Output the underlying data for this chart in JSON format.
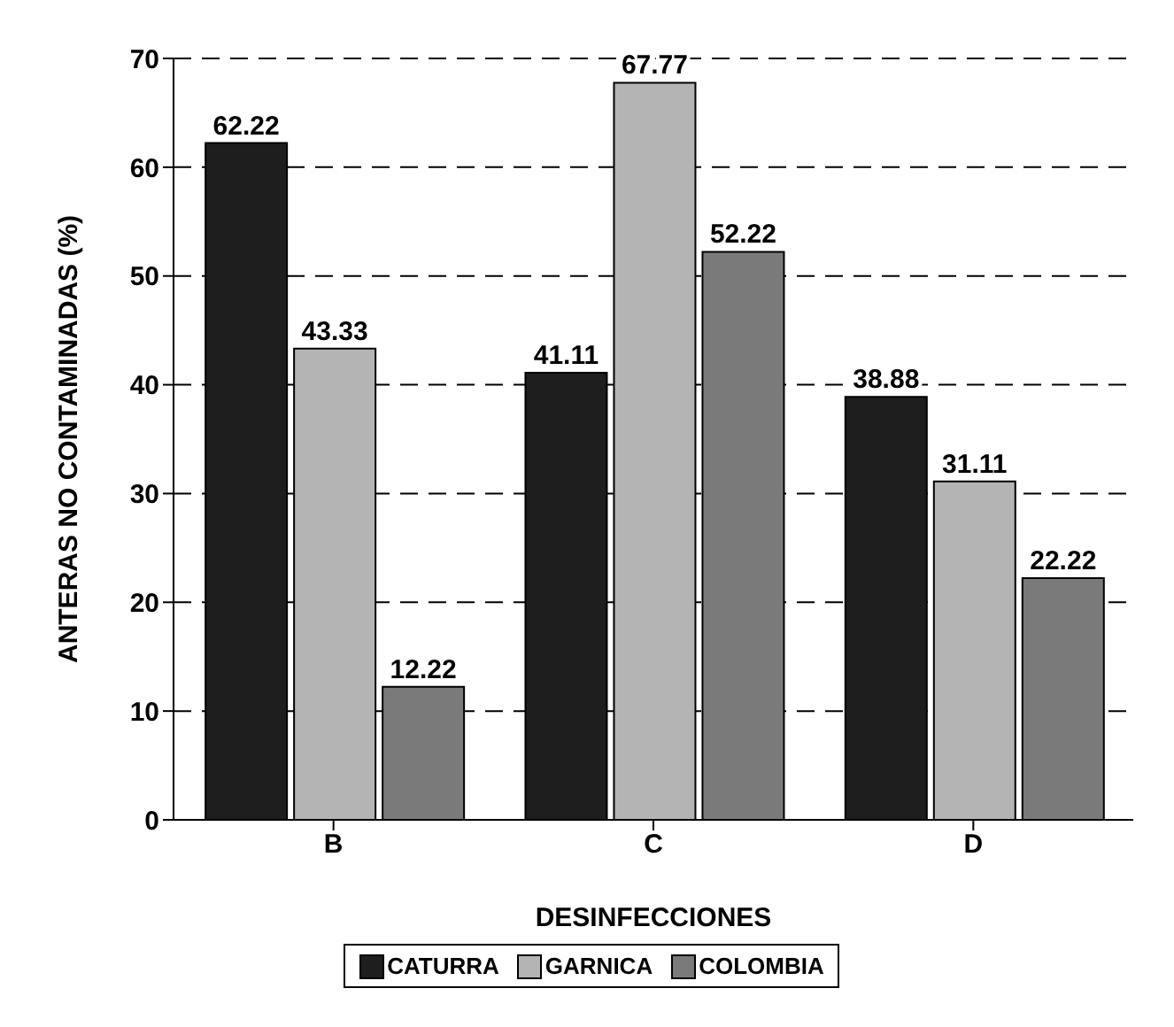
{
  "chart_data": {
    "type": "bar",
    "xlabel": "DESINFECCIONES",
    "ylabel": "ANTERAS NO CONTAMINADAS (%)",
    "categories": [
      "B",
      "C",
      "D"
    ],
    "series": [
      {
        "name": "CATURRA",
        "color": "#1e1e1e",
        "values": [
          62.22,
          41.11,
          38.88
        ]
      },
      {
        "name": "GARNICA",
        "color": "#b4b4b4",
        "values": [
          43.33,
          67.77,
          31.11
        ]
      },
      {
        "name": "COLOMBIA",
        "color": "#7a7a7a",
        "values": [
          12.22,
          52.22,
          22.22
        ]
      }
    ],
    "ylim": [
      0,
      70
    ],
    "yticks": [
      0,
      10,
      20,
      30,
      40,
      50,
      60,
      70
    ],
    "grid": "y",
    "legend": "bottom",
    "data_labels": true
  }
}
